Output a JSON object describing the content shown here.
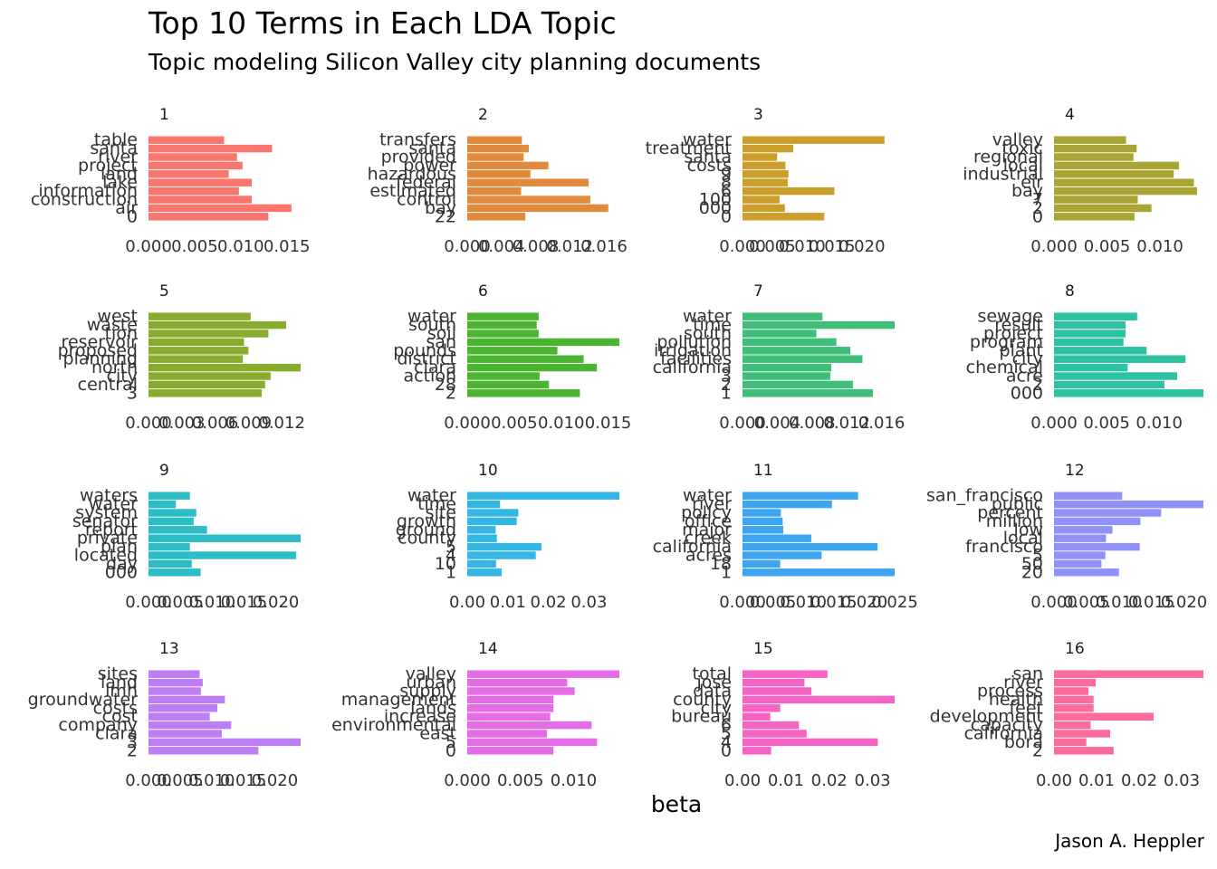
{
  "title": "Top 10 Terms in Each LDA Topic",
  "subtitle": "Topic modeling Silicon Valley city planning documents",
  "caption": "Jason A. Heppler",
  "chart_data": {
    "type": "bar",
    "orientation": "horizontal",
    "facet_layout": {
      "rows": 4,
      "cols": 4
    },
    "scales": "free",
    "grid": false,
    "legend": "none",
    "xlabel": "beta",
    "ylabel": "",
    "facets": [
      {
        "label": "1",
        "color": "#F8766D",
        "xlim": [
          0,
          0.0165
        ],
        "ticks": [
          "0.000",
          "0.005",
          "0.010",
          "0.015"
        ],
        "tick_values": [
          0,
          0.005,
          0.01,
          0.015
        ],
        "terms": [
          "table",
          "santa",
          "river",
          "project",
          "land",
          "lake",
          "information",
          "construction",
          "air",
          "0"
        ],
        "values": [
          0.0082,
          0.0134,
          0.0096,
          0.0102,
          0.0087,
          0.0112,
          0.0098,
          0.0112,
          0.0155,
          0.013
        ]
      },
      {
        "label": "2",
        "color": "#E18A3B",
        "xlim": [
          0,
          0.0178
        ],
        "ticks": [
          "0.000",
          "0.004",
          "0.008",
          "0.012",
          "0.016"
        ],
        "tick_values": [
          0,
          0.004,
          0.008,
          0.012,
          0.016
        ],
        "terms": [
          "transfers",
          "santa",
          "provided",
          "power",
          "hazardous",
          "federal",
          "estimated",
          "control",
          "bay",
          "22"
        ],
        "values": [
          0.0064,
          0.0072,
          0.0066,
          0.0095,
          0.0074,
          0.0142,
          0.0063,
          0.0144,
          0.0165,
          0.0068
        ]
      },
      {
        "label": "3",
        "color": "#CC9F2C",
        "xlim": [
          0,
          0.0255
        ],
        "ticks": [
          "0.000",
          "0.005",
          "0.010",
          "0.015",
          "0.020"
        ],
        "tick_values": [
          0,
          0.005,
          0.01,
          0.015,
          0.02
        ],
        "terms": [
          "water",
          "treatment",
          "santa",
          "costs",
          "9",
          "8",
          "6",
          "100",
          "000",
          "0"
        ],
        "values": [
          0.0238,
          0.0085,
          0.0058,
          0.0072,
          0.0077,
          0.0076,
          0.0154,
          0.0062,
          0.0071,
          0.0137
        ]
      },
      {
        "label": "4",
        "color": "#A9A534",
        "xlim": [
          0,
          0.0141
        ],
        "ticks": [
          "0.000",
          "0.005",
          "0.010"
        ],
        "tick_values": [
          0,
          0.005,
          0.01
        ],
        "terms": [
          "valley",
          "toxic",
          "regional",
          "local",
          "industrial",
          "eir",
          "bay",
          "7",
          "2",
          "0"
        ],
        "values": [
          0.0068,
          0.0078,
          0.0075,
          0.0118,
          0.0113,
          0.0132,
          0.0135,
          0.0079,
          0.0092,
          0.0076
        ]
      },
      {
        "label": "5",
        "color": "#87AC2E",
        "xlim": [
          0,
          0.0137
        ],
        "ticks": [
          "0.000",
          "0.003",
          "0.006",
          "0.009",
          "0.012"
        ],
        "tick_values": [
          0,
          0.003,
          0.006,
          0.009,
          0.012
        ],
        "terms": [
          "west",
          "waste",
          "tion",
          "reservoir",
          "proposed",
          "planning",
          "north",
          "city",
          "central",
          "3"
        ],
        "values": [
          0.0092,
          0.0124,
          0.0108,
          0.0086,
          0.009,
          0.0085,
          0.0138,
          0.011,
          0.0105,
          0.0102
        ]
      },
      {
        "label": "6",
        "color": "#4BB531",
        "xlim": [
          0,
          0.0162
        ],
        "ticks": [
          "0.000",
          "0.005",
          "0.010",
          "0.015"
        ],
        "tick_values": [
          0,
          0.005,
          0.01,
          0.015
        ],
        "terms": [
          "water",
          "south",
          "soil",
          "san",
          "pounds",
          "district",
          "clara",
          "action",
          "28",
          "2"
        ],
        "values": [
          0.0076,
          0.0074,
          0.0076,
          0.0162,
          0.0096,
          0.0124,
          0.0138,
          0.0077,
          0.0087,
          0.012
        ]
      },
      {
        "label": "7",
        "color": "#3EBE79",
        "xlim": [
          0,
          0.0175
        ],
        "ticks": [
          "0.000",
          "0.004",
          "0.008",
          "0.012",
          "0.016"
        ],
        "tick_values": [
          0,
          0.004,
          0.008,
          0.012,
          0.016
        ],
        "terms": [
          "water",
          "time",
          "south",
          "pollution",
          "irrigation",
          "facilities",
          "california",
          "3",
          "2",
          "1"
        ],
        "values": [
          0.0092,
          0.0175,
          0.0085,
          0.0108,
          0.0124,
          0.0138,
          0.0102,
          0.0101,
          0.0127,
          0.015
        ]
      },
      {
        "label": "8",
        "color": "#2EC1A2",
        "xlim": [
          0,
          0.0142
        ],
        "ticks": [
          "0.000",
          "0.005",
          "0.010"
        ],
        "tick_values": [
          0,
          0.005,
          0.01
        ],
        "terms": [
          "sewage",
          "result",
          "project",
          "program",
          "plant",
          "city",
          "chemical",
          "acre",
          "2",
          "000"
        ],
        "values": [
          0.0079,
          0.0068,
          0.0068,
          0.0066,
          0.0088,
          0.0125,
          0.007,
          0.0117,
          0.0105,
          0.0145
        ]
      },
      {
        "label": "9",
        "color": "#2DBDC7",
        "xlim": [
          0,
          0.0239
        ],
        "ticks": [
          "0.000",
          "0.005",
          "0.010",
          "0.015",
          "0.020"
        ],
        "tick_values": [
          0,
          0.005,
          0.01,
          0.015,
          0.02
        ],
        "terms": [
          "waters",
          "water",
          "system",
          "senator",
          "report",
          "private",
          "plan",
          "located",
          "day",
          "000"
        ],
        "values": [
          0.0065,
          0.0043,
          0.0075,
          0.0071,
          0.0092,
          0.0239,
          0.0065,
          0.0232,
          0.0068,
          0.0082
        ]
      },
      {
        "label": "10",
        "color": "#34B6E3",
        "xlim": [
          0,
          0.0375
        ],
        "ticks": [
          "0.00",
          "0.01",
          "0.02",
          "0.03"
        ],
        "tick_values": [
          0,
          0.01,
          0.02,
          0.03
        ],
        "terms": [
          "water",
          "time",
          "site",
          "growth",
          "ground",
          "county",
          "5",
          "4",
          "10",
          "1"
        ],
        "values": [
          0.0376,
          0.0081,
          0.0126,
          0.0122,
          0.007,
          0.0073,
          0.0183,
          0.0169,
          0.0071,
          0.0085
        ]
      },
      {
        "label": "11",
        "color": "#3EA6F0",
        "xlim": [
          0,
          0.025
        ],
        "ticks": [
          "0.000",
          "0.005",
          "0.010",
          "0.015",
          "0.020",
          "0.025"
        ],
        "tick_values": [
          0,
          0.005,
          0.01,
          0.015,
          0.02,
          0.025
        ],
        "terms": [
          "water",
          "river",
          "policy",
          "office",
          "major",
          "creek",
          "california",
          "acres",
          "18",
          "1"
        ],
        "values": [
          0.019,
          0.0147,
          0.0063,
          0.0066,
          0.0067,
          0.0113,
          0.0222,
          0.013,
          0.0062,
          0.0255
        ]
      },
      {
        "label": "12",
        "color": "#8F91F7",
        "xlim": [
          0,
          0.023
        ],
        "ticks": [
          "0.000",
          "0.005",
          "0.010",
          "0.015",
          "0.020"
        ],
        "tick_values": [
          0,
          0.005,
          0.01,
          0.015,
          0.02
        ],
        "terms": [
          "san_francisco",
          "public",
          "percent",
          "million",
          "low",
          "local",
          "francisco",
          "5",
          "50",
          "20"
        ],
        "values": [
          0.0105,
          0.0232,
          0.0165,
          0.0133,
          0.009,
          0.008,
          0.0132,
          0.0079,
          0.0073,
          0.01
        ]
      },
      {
        "label": "13",
        "color": "#BD7DF5",
        "xlim": [
          0,
          0.0241
        ],
        "ticks": [
          "0.000",
          "0.005",
          "0.010",
          "0.015",
          "0.020"
        ],
        "tick_values": [
          0,
          0.005,
          0.01,
          0.015,
          0.02
        ],
        "terms": [
          "sites",
          "land",
          "lmh",
          "groundwater",
          "costs",
          "cost",
          "company",
          "clara",
          "3",
          "2"
        ],
        "values": [
          0.0081,
          0.0086,
          0.0083,
          0.0121,
          0.0109,
          0.0097,
          0.0131,
          0.0116,
          0.0241,
          0.0174
        ]
      },
      {
        "label": "14",
        "color": "#E56CE6",
        "xlim": [
          0,
          0.0143
        ],
        "ticks": [
          "0.000",
          "0.005",
          "0.010"
        ],
        "tick_values": [
          0,
          0.005,
          0.01
        ],
        "terms": [
          "valley",
          "urban",
          "supply",
          "management",
          "lands",
          "increase",
          "environmental",
          "east",
          "5",
          "0"
        ],
        "values": [
          0.0143,
          0.0094,
          0.0101,
          0.0081,
          0.0081,
          0.0078,
          0.0117,
          0.0075,
          0.0122,
          0.0081
        ]
      },
      {
        "label": "15",
        "color": "#F763C4",
        "xlim": [
          0,
          0.0351
        ],
        "ticks": [
          "0.00",
          "0.01",
          "0.02",
          "0.03"
        ],
        "tick_values": [
          0,
          0.01,
          0.02,
          0.03
        ],
        "terms": [
          "total",
          "jose",
          "data",
          "county",
          "city",
          "bureau",
          "6",
          "5",
          "4",
          "0"
        ],
        "values": [
          0.0196,
          0.0143,
          0.0159,
          0.0353,
          0.0087,
          0.0064,
          0.013,
          0.0148,
          0.0312,
          0.0066
        ]
      },
      {
        "label": "16",
        "color": "#FC6B9C",
        "xlim": [
          0,
          0.0351
        ],
        "ticks": [
          "0.00",
          "0.01",
          "0.02",
          "0.03"
        ],
        "tick_values": [
          0,
          0.01,
          0.02,
          0.03
        ],
        "terms": [
          "san",
          "river",
          "process",
          "health",
          "feet",
          "development",
          "capacity",
          "california",
          "bora",
          "2"
        ],
        "values": [
          0.0351,
          0.0098,
          0.0081,
          0.0093,
          0.0093,
          0.0234,
          0.0086,
          0.0132,
          0.0076,
          0.014
        ]
      }
    ]
  }
}
